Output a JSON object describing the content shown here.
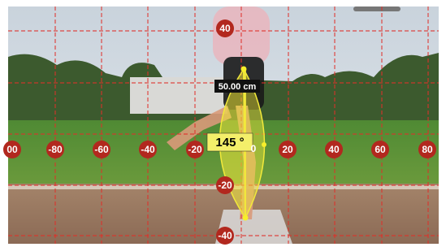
{
  "overlay": {
    "x_axis_labels": [
      "00",
      "-80",
      "-60",
      "-40",
      "-20",
      "0",
      "20",
      "40",
      "60",
      "80"
    ],
    "y_axis_labels": [
      "40",
      "-20",
      "-40"
    ],
    "distance": "50.00 cm",
    "angle": "145 °"
  }
}
